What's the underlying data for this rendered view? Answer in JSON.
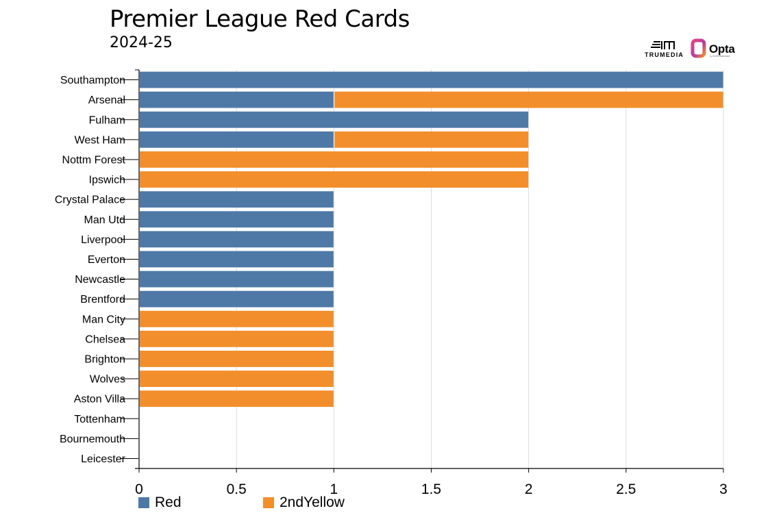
{
  "header": {
    "title": "Premier League Red Cards",
    "subtitle": "2024-25"
  },
  "logos": {
    "trumedia": "TRUMEDIA",
    "opta": "Opta",
    "opta_sub": "by STATS PERFORM"
  },
  "colors": {
    "red_series": "#4e79a7",
    "yellow_series": "#f28e2b",
    "grid": "#dddddd",
    "axis": "#000000"
  },
  "chart_data": {
    "type": "bar",
    "orientation": "horizontal",
    "stacked": true,
    "title": "Premier League Red Cards",
    "subtitle": "2024-25",
    "xlabel": "",
    "ylabel": "",
    "xlim": [
      0,
      3
    ],
    "x_ticks": [
      "0",
      "0.5",
      "1",
      "1.5",
      "2",
      "2.5",
      "3"
    ],
    "grid": "vertical",
    "legend_position": "bottom-left",
    "categories": [
      "Southampton",
      "Arsenal",
      "Fulham",
      "West Ham",
      "Nottm Forest",
      "Ipswich",
      "Crystal Palace",
      "Man Utd",
      "Liverpool",
      "Everton",
      "Newcastle",
      "Brentford",
      "Man City",
      "Chelsea",
      "Brighton",
      "Wolves",
      "Aston Villa",
      "Tottenham",
      "Bournemouth",
      "Leicester"
    ],
    "series": [
      {
        "name": "Red",
        "color": "#4e79a7",
        "values": [
          3,
          1,
          2,
          1,
          0,
          0,
          1,
          1,
          1,
          1,
          1,
          1,
          0,
          0,
          0,
          0,
          0,
          0,
          0,
          0
        ]
      },
      {
        "name": "2ndYellow",
        "color": "#f28e2b",
        "values": [
          0,
          2,
          0,
          1,
          2,
          2,
          0,
          0,
          0,
          0,
          0,
          0,
          1,
          1,
          1,
          1,
          1,
          0,
          0,
          0
        ]
      }
    ]
  }
}
